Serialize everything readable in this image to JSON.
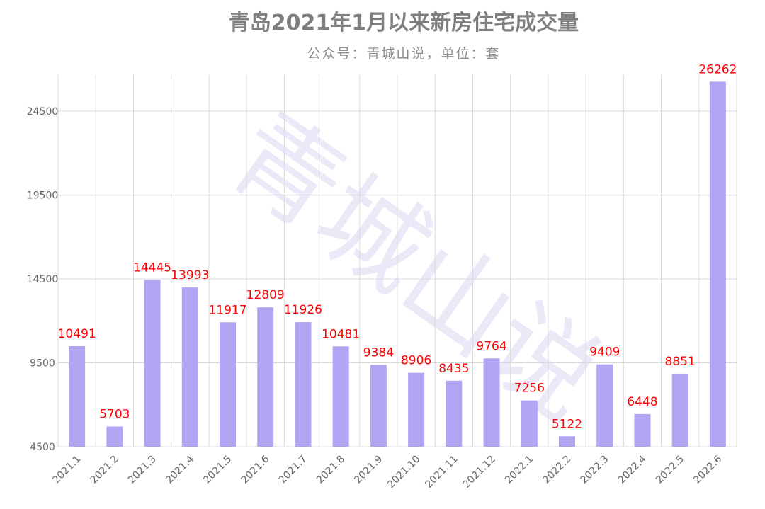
{
  "chart_data": {
    "type": "bar",
    "title": "青岛2021年1月以来新房住宅成交量",
    "subtitle": "公众号：青城山说，单位：套",
    "watermark": "青城山说",
    "categories": [
      "2021.1",
      "2021.2",
      "2021.3",
      "2021.4",
      "2021.5",
      "2021.6",
      "2021.7",
      "2021.8",
      "2021.9",
      "2021.10",
      "2021.11",
      "2021.12",
      "2022.1",
      "2022.2",
      "2022.3",
      "2022.4",
      "2022.5",
      "2022.6"
    ],
    "series": [
      {
        "values": [
          10491,
          5703,
          14445,
          13993,
          11917,
          12809,
          11926,
          10481,
          9384,
          8906,
          8435,
          9764,
          7256,
          5122,
          9409,
          6448,
          8851,
          26262
        ]
      }
    ],
    "yticks": [
      4500,
      9500,
      14500,
      19500,
      24500
    ],
    "ylim": [
      4500,
      26700
    ],
    "grid": true,
    "bar_color": "#b0a6f4",
    "label_color": "#ff0000"
  }
}
